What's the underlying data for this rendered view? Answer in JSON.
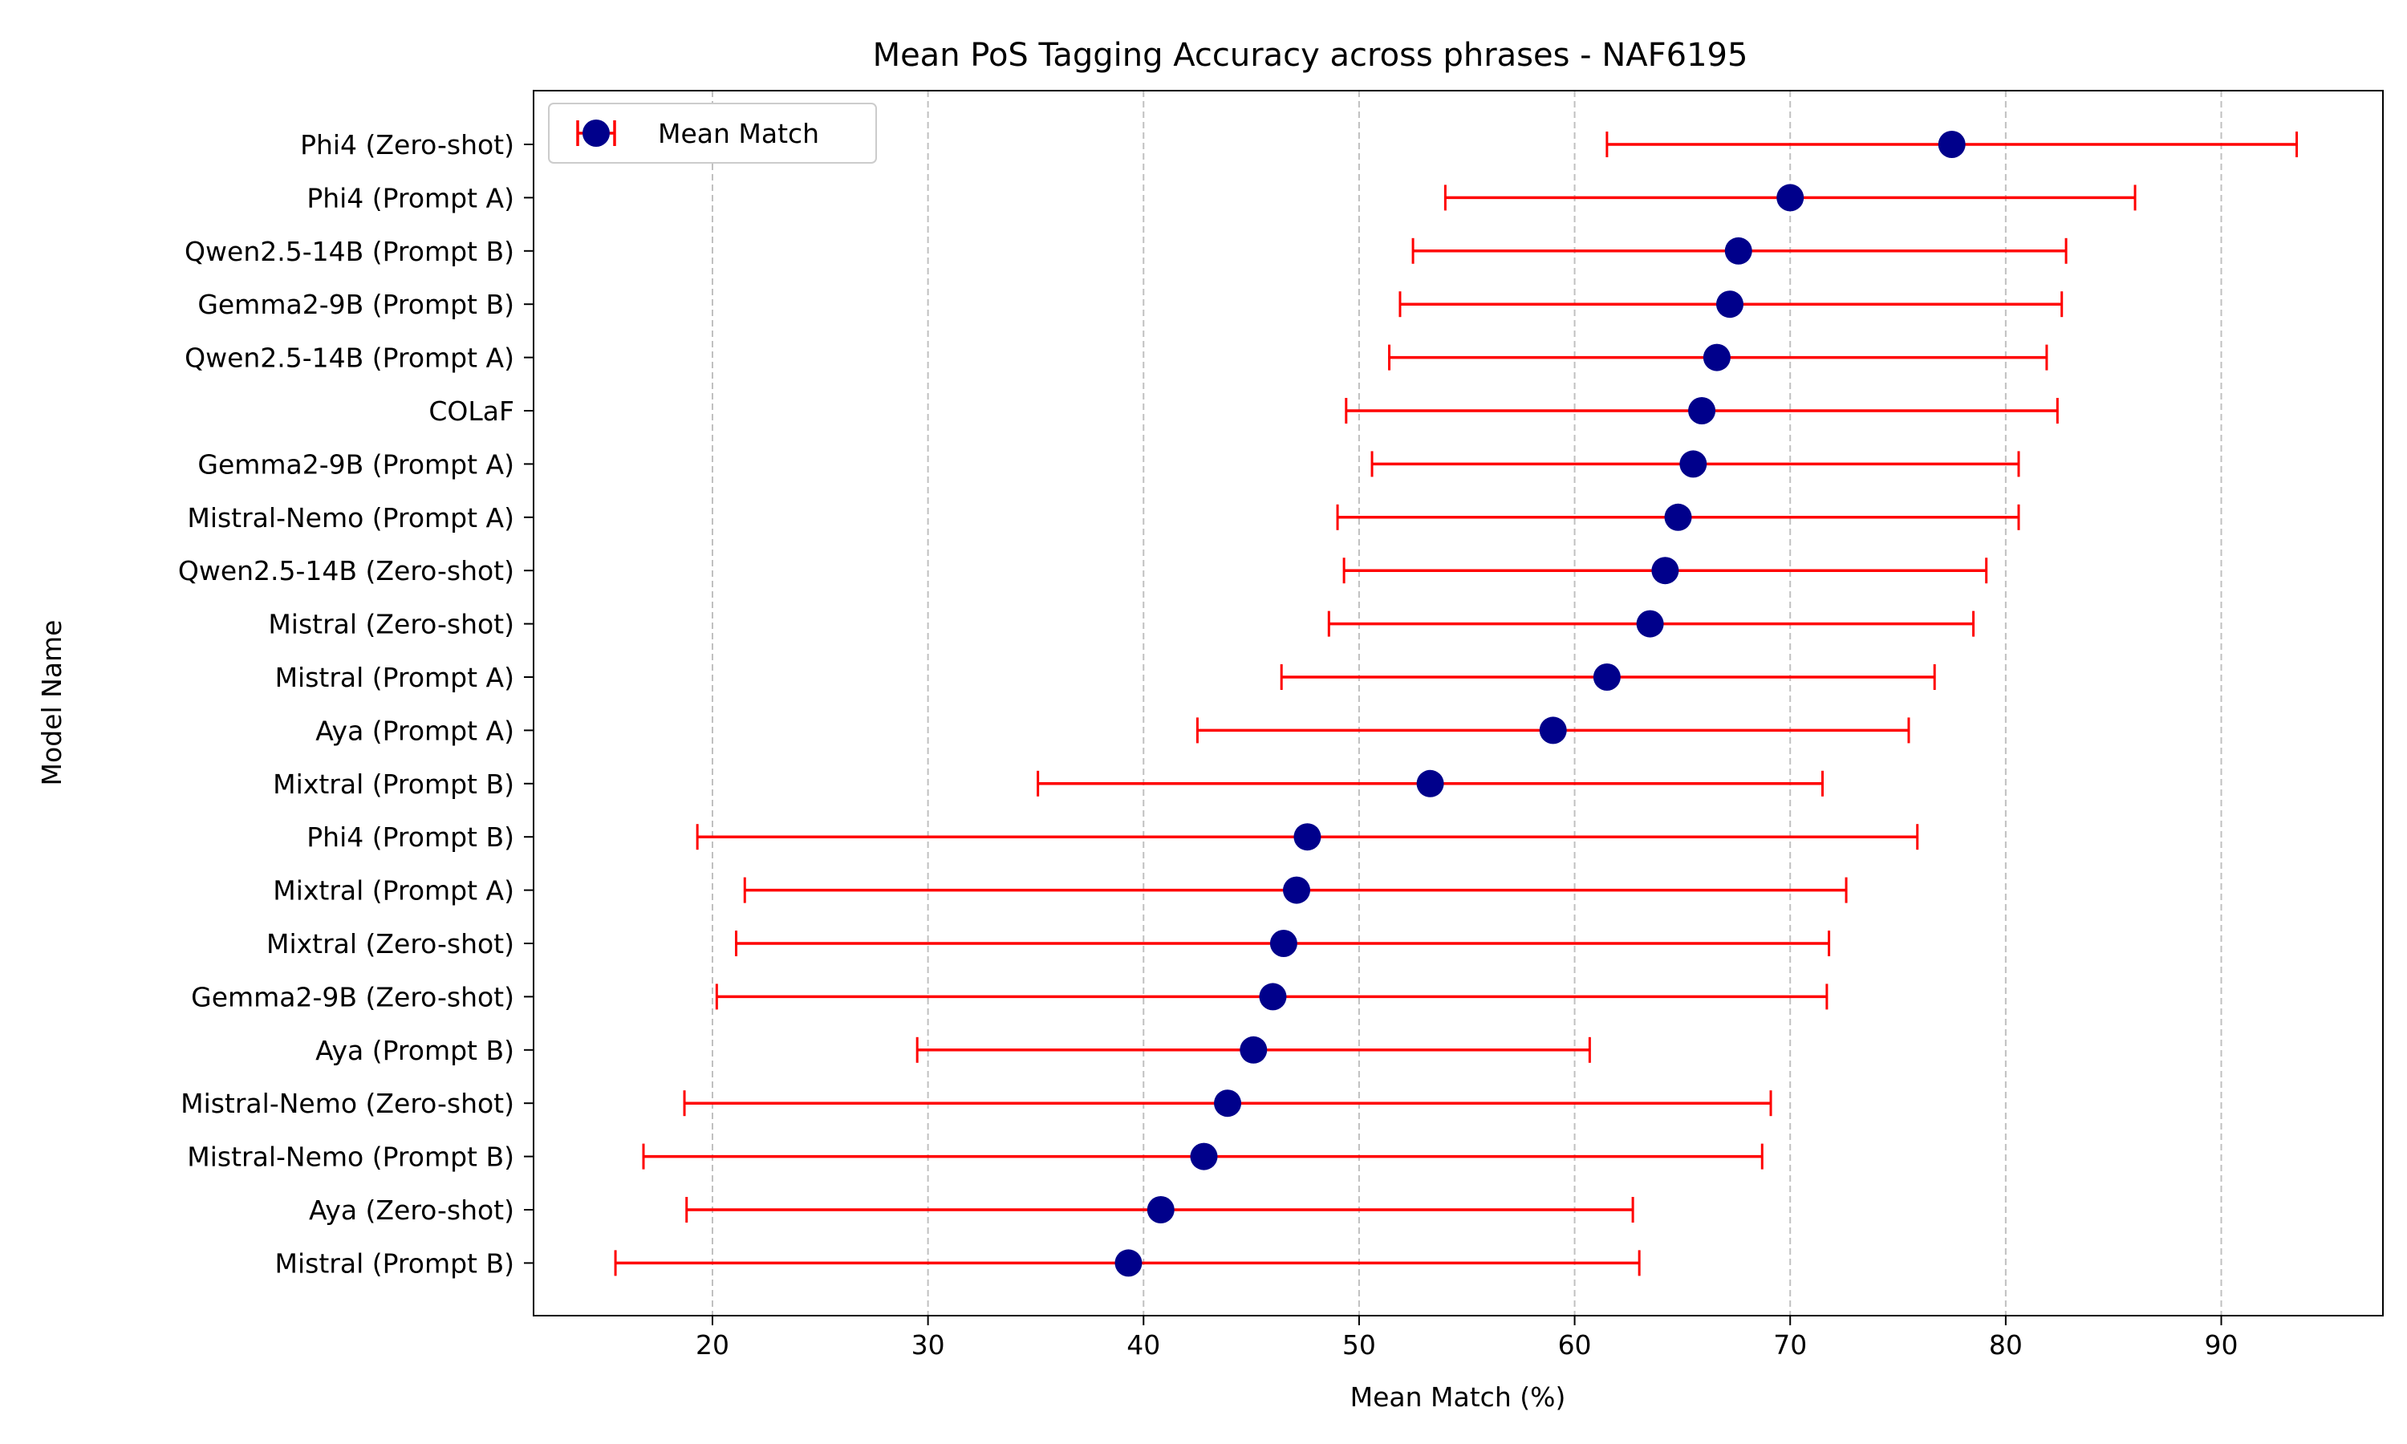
{
  "chart_data": {
    "type": "scatter",
    "title": "Mean PoS Tagging Accuracy across phrases - NAF6195",
    "xlabel": "Mean Match (%)",
    "ylabel": "Model Name",
    "xlim": [
      11.7,
      97.5
    ],
    "xticks": [
      20,
      30,
      40,
      50,
      60,
      70,
      80,
      90
    ],
    "grid": "x-dashed",
    "legend": {
      "position": "top-left",
      "entries": [
        "Mean Match"
      ]
    },
    "colors": {
      "marker": "#00008b",
      "errorbar": "#ff0000",
      "grid": "#c0c0c0"
    },
    "categories": [
      "Phi4 (Zero-shot)",
      "Phi4 (Prompt A)",
      "Qwen2.5-14B (Prompt B)",
      "Gemma2-9B (Prompt B)",
      "Qwen2.5-14B (Prompt A)",
      "COLaF",
      "Gemma2-9B (Prompt A)",
      "Mistral-Nemo (Prompt A)",
      "Qwen2.5-14B (Zero-shot)",
      "Mistral (Zero-shot)",
      "Mistral (Prompt A)",
      "Aya (Prompt A)",
      "Mixtral (Prompt B)",
      "Phi4 (Prompt B)",
      "Mixtral (Prompt A)",
      "Mixtral (Zero-shot)",
      "Gemma2-9B (Zero-shot)",
      "Aya (Prompt B)",
      "Mistral-Nemo (Zero-shot)",
      "Mistral-Nemo (Prompt B)",
      "Aya (Zero-shot)",
      "Mistral (Prompt B)"
    ],
    "series": [
      {
        "name": "Mean Match",
        "values": [
          77.5,
          70.0,
          67.6,
          67.2,
          66.6,
          65.9,
          65.5,
          64.8,
          64.2,
          63.5,
          61.5,
          59.0,
          53.3,
          47.6,
          47.1,
          46.5,
          46.0,
          45.1,
          43.9,
          42.8,
          40.8,
          39.3
        ],
        "lower": [
          61.5,
          54.0,
          52.5,
          51.9,
          51.4,
          49.4,
          50.6,
          49.0,
          49.3,
          48.6,
          46.4,
          42.5,
          35.1,
          19.3,
          21.5,
          21.1,
          20.2,
          29.5,
          18.7,
          16.8,
          18.8,
          15.5
        ],
        "upper": [
          93.5,
          86.0,
          82.8,
          82.6,
          81.9,
          82.4,
          80.6,
          80.6,
          79.1,
          78.5,
          76.7,
          75.5,
          71.5,
          75.9,
          72.6,
          71.8,
          71.7,
          60.7,
          69.1,
          68.7,
          62.7,
          63.0
        ]
      }
    ]
  }
}
